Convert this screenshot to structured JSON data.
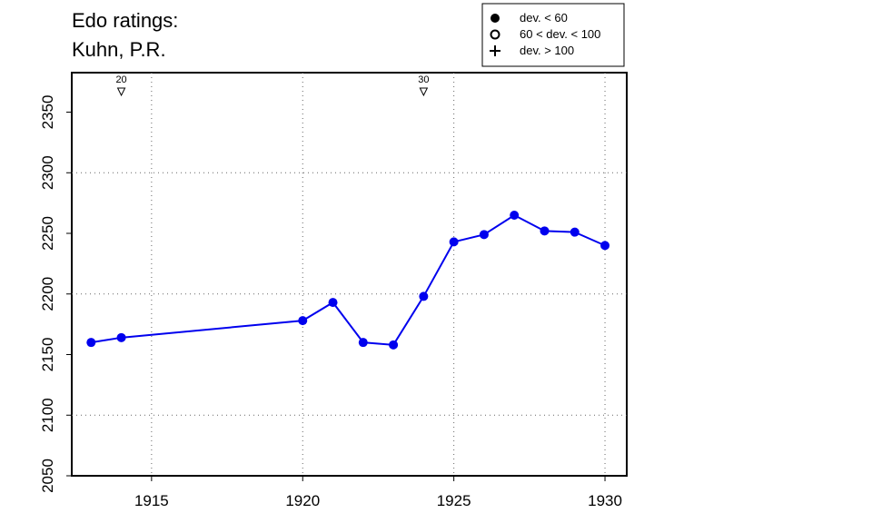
{
  "chart_data": {
    "type": "line",
    "title": [
      "Edo ratings:",
      "Kuhn, P.R."
    ],
    "x": [
      1913,
      1914,
      1920,
      1921,
      1922,
      1923,
      1924,
      1925,
      1926,
      1927,
      1928,
      1929,
      1930
    ],
    "series": [
      {
        "name": "dev. < 60",
        "color": "#0000ee",
        "values": [
          2160,
          2164,
          2178,
          2193,
          2160,
          2158,
          2198,
          2243,
          2249,
          2265,
          2252,
          2251,
          2240
        ]
      }
    ],
    "legend_entries": [
      "dev. < 60",
      "60 < dev. < 100",
      "dev. > 100"
    ],
    "xlim": [
      1912.36,
      1930.72
    ],
    "ylim": [
      2050,
      2382.6
    ],
    "xticks": [
      1915,
      1920,
      1925,
      1930
    ],
    "yticks": [
      2050,
      2100,
      2150,
      2200,
      2250,
      2300,
      2350
    ],
    "ygrid": [
      2100,
      2200,
      2300
    ],
    "grid": true,
    "annotations": [
      {
        "x": 1914,
        "label": "20"
      },
      {
        "x": 1924,
        "label": "30"
      }
    ]
  }
}
